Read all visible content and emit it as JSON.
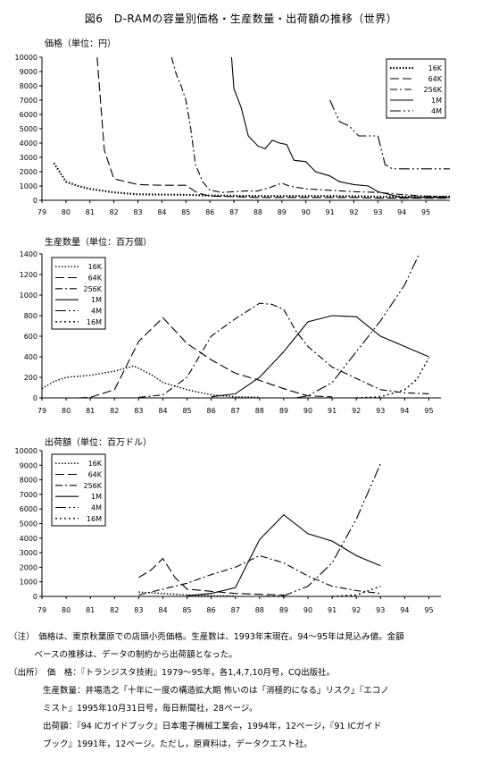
{
  "figure_title": "図6　D-RAMの容量別価格・生産数量・出荷額の推移（世界）",
  "chart_data": [
    {
      "id": "price",
      "type": "line",
      "ylabel": "価格（単位：円）",
      "ylim": [
        0,
        10000
      ],
      "yticks": [
        0,
        1000,
        2000,
        3000,
        4000,
        5000,
        6000,
        7000,
        8000,
        9000,
        10000
      ],
      "xlim": [
        79,
        96
      ],
      "xticks": [
        79,
        80,
        81,
        82,
        83,
        84,
        85,
        86,
        87,
        88,
        89,
        90,
        91,
        92,
        93,
        94,
        95
      ],
      "legend_position": "top-right",
      "grid": false,
      "series": [
        {
          "name": "16K",
          "dash": "1.5,2",
          "width": 2.2,
          "points": [
            [
              79.5,
              2600
            ],
            [
              80.0,
              1300
            ],
            [
              80.5,
              1000
            ],
            [
              81.0,
              800
            ],
            [
              82.0,
              550
            ],
            [
              83.0,
              420
            ],
            [
              85.0,
              380
            ],
            [
              86.0,
              330
            ],
            [
              87.0,
              320
            ],
            [
              88.0,
              300
            ],
            [
              89.0,
              300
            ],
            [
              90.0,
              300
            ],
            [
              91.0,
              300
            ],
            [
              92.0,
              280
            ],
            [
              93.0,
              250
            ],
            [
              94.0,
              250
            ],
            [
              95.0,
              250
            ],
            [
              96.0,
              250
            ]
          ]
        },
        {
          "name": "64K",
          "dash": "10,4",
          "width": 1.1,
          "points": [
            [
              81.3,
              10000
            ],
            [
              81.6,
              3500
            ],
            [
              82.0,
              1500
            ],
            [
              82.5,
              1300
            ],
            [
              83.0,
              1100
            ],
            [
              84.0,
              1050
            ],
            [
              85.0,
              1050
            ],
            [
              85.5,
              500
            ],
            [
              86.0,
              300
            ],
            [
              87.0,
              250
            ],
            [
              88.0,
              200
            ],
            [
              89.0,
              200
            ],
            [
              90.0,
              200
            ],
            [
              91.0,
              200
            ],
            [
              92.0,
              200
            ],
            [
              93.0,
              150
            ],
            [
              94.0,
              150
            ],
            [
              95.0,
              150
            ],
            [
              96.0,
              150
            ]
          ]
        },
        {
          "name": "256K",
          "dash": "8,3,2,3",
          "width": 1.1,
          "points": [
            [
              84.4,
              10000
            ],
            [
              84.6,
              8800
            ],
            [
              84.8,
              8000
            ],
            [
              85.0,
              7000
            ],
            [
              85.2,
              5000
            ],
            [
              85.4,
              2500
            ],
            [
              85.7,
              1300
            ],
            [
              86.0,
              700
            ],
            [
              86.5,
              550
            ],
            [
              87.0,
              600
            ],
            [
              87.5,
              650
            ],
            [
              88.0,
              650
            ],
            [
              88.5,
              900
            ],
            [
              89.0,
              1200
            ],
            [
              89.3,
              1000
            ],
            [
              90.0,
              800
            ],
            [
              91.0,
              700
            ],
            [
              92.0,
              600
            ],
            [
              93.0,
              550
            ],
            [
              94.0,
              400
            ],
            [
              95.0,
              300
            ],
            [
              96.0,
              250
            ]
          ]
        },
        {
          "name": "1M",
          "dash": "",
          "width": 1.1,
          "points": [
            [
              86.9,
              10000
            ],
            [
              87.0,
              7800
            ],
            [
              87.3,
              6500
            ],
            [
              87.6,
              4500
            ],
            [
              88.0,
              3800
            ],
            [
              88.3,
              3600
            ],
            [
              88.6,
              4200
            ],
            [
              88.9,
              4000
            ],
            [
              89.2,
              3900
            ],
            [
              89.5,
              2800
            ],
            [
              90.0,
              2700
            ],
            [
              90.4,
              2000
            ],
            [
              91.0,
              1700
            ],
            [
              91.4,
              1300
            ],
            [
              92.0,
              1100
            ],
            [
              92.6,
              1000
            ],
            [
              93.0,
              600
            ],
            [
              93.5,
              400
            ],
            [
              94.0,
              200
            ],
            [
              94.5,
              200
            ],
            [
              95.0,
              200
            ],
            [
              96.0,
              200
            ]
          ]
        },
        {
          "name": "4M",
          "dash": "12,3,2,3,2,3",
          "width": 1.1,
          "points": [
            [
              91.0,
              7000
            ],
            [
              91.4,
              5500
            ],
            [
              91.8,
              5200
            ],
            [
              92.2,
              4500
            ],
            [
              93.0,
              4500
            ],
            [
              93.3,
              2500
            ],
            [
              93.6,
              2200
            ],
            [
              94.0,
              2200
            ],
            [
              95.0,
              2200
            ],
            [
              96.0,
              2200
            ]
          ]
        }
      ]
    },
    {
      "id": "production",
      "type": "line",
      "ylabel": "生産数量（単位：百万個）",
      "ylim": [
        0,
        1400
      ],
      "yticks": [
        0,
        200,
        400,
        600,
        800,
        1000,
        1200,
        1400
      ],
      "xlim": [
        79,
        95.5
      ],
      "xticks": [
        79,
        80,
        81,
        82,
        83,
        84,
        85,
        86,
        87,
        88,
        89,
        90,
        91,
        92,
        93,
        94,
        95
      ],
      "legend_position": "top-left",
      "grid": false,
      "series": [
        {
          "name": "16K",
          "dash": "1.5,2",
          "width": 1.4,
          "points": [
            [
              79.0,
              90
            ],
            [
              79.5,
              160
            ],
            [
              80.0,
              200
            ],
            [
              81.0,
              220
            ],
            [
              82.0,
              260
            ],
            [
              82.8,
              310
            ],
            [
              83.5,
              230
            ],
            [
              84.0,
              150
            ],
            [
              85.0,
              80
            ],
            [
              86.0,
              30
            ],
            [
              87.0,
              10
            ],
            [
              88.0,
              5
            ]
          ]
        },
        {
          "name": "64K",
          "dash": "10,4",
          "width": 1.1,
          "points": [
            [
              80.5,
              0
            ],
            [
              81.0,
              5
            ],
            [
              82.0,
              80
            ],
            [
              83.0,
              550
            ],
            [
              84.0,
              780
            ],
            [
              85.0,
              530
            ],
            [
              86.0,
              370
            ],
            [
              87.0,
              240
            ],
            [
              88.0,
              170
            ],
            [
              89.0,
              90
            ],
            [
              90.0,
              20
            ],
            [
              91.0,
              10
            ]
          ]
        },
        {
          "name": "256K",
          "dash": "8,3,2,3",
          "width": 1.1,
          "points": [
            [
              83.0,
              5
            ],
            [
              84.0,
              30
            ],
            [
              85.0,
              200
            ],
            [
              86.0,
              600
            ],
            [
              87.0,
              770
            ],
            [
              88.0,
              920
            ],
            [
              88.5,
              910
            ],
            [
              89.0,
              860
            ],
            [
              89.5,
              650
            ],
            [
              90.0,
              500
            ],
            [
              91.0,
              300
            ],
            [
              92.0,
              190
            ],
            [
              93.0,
              80
            ],
            [
              94.0,
              50
            ],
            [
              95.0,
              40
            ]
          ]
        },
        {
          "name": "1M",
          "dash": "",
          "width": 1.1,
          "points": [
            [
              86.0,
              10
            ],
            [
              87.0,
              40
            ],
            [
              88.0,
              200
            ],
            [
              89.0,
              450
            ],
            [
              90.0,
              740
            ],
            [
              91.0,
              800
            ],
            [
              92.0,
              790
            ],
            [
              93.0,
              600
            ],
            [
              94.0,
              500
            ],
            [
              95.0,
              400
            ]
          ]
        },
        {
          "name": "4M",
          "dash": "12,3,2,3,2,3",
          "width": 1.1,
          "points": [
            [
              89.5,
              0
            ],
            [
              90.0,
              20
            ],
            [
              91.0,
              150
            ],
            [
              92.0,
              450
            ],
            [
              93.0,
              750
            ],
            [
              94.0,
              1100
            ],
            [
              94.6,
              1400
            ]
          ]
        },
        {
          "name": "16M",
          "dash": "2,3",
          "width": 1.4,
          "points": [
            [
              92.0,
              0
            ],
            [
              93.0,
              10
            ],
            [
              94.0,
              80
            ],
            [
              94.5,
              180
            ],
            [
              95.0,
              390
            ]
          ]
        }
      ]
    },
    {
      "id": "shipments",
      "type": "line",
      "ylabel": "出荷額（単位：百万ドル）",
      "ylim": [
        0,
        10000
      ],
      "yticks": [
        0,
        1000,
        2000,
        3000,
        4000,
        5000,
        6000,
        7000,
        8000,
        9000,
        10000
      ],
      "xlim": [
        79,
        95.5
      ],
      "xticks": [
        79,
        80,
        81,
        82,
        83,
        84,
        85,
        86,
        87,
        88,
        89,
        90,
        91,
        92,
        93,
        94,
        95
      ],
      "legend_position": "top-left",
      "grid": false,
      "series": [
        {
          "name": "16K",
          "dash": "1.5,2",
          "width": 1.4,
          "points": [
            [
              83.0,
              300
            ],
            [
              84.0,
              200
            ],
            [
              85.0,
              100
            ],
            [
              86.0,
              50
            ],
            [
              87.0,
              30
            ]
          ]
        },
        {
          "name": "64K",
          "dash": "10,4",
          "width": 1.1,
          "points": [
            [
              83.0,
              1300
            ],
            [
              83.5,
              1800
            ],
            [
              84.0,
              2600
            ],
            [
              84.5,
              1300
            ],
            [
              85.0,
              500
            ],
            [
              86.0,
              350
            ],
            [
              87.0,
              200
            ],
            [
              88.0,
              150
            ],
            [
              89.0,
              100
            ]
          ]
        },
        {
          "name": "256K",
          "dash": "8,3,2,3",
          "width": 1.1,
          "points": [
            [
              83.0,
              100
            ],
            [
              84.0,
              500
            ],
            [
              85.0,
              900
            ],
            [
              86.0,
              1500
            ],
            [
              87.0,
              2000
            ],
            [
              88.0,
              2800
            ],
            [
              89.0,
              2300
            ],
            [
              90.0,
              1400
            ],
            [
              91.0,
              700
            ],
            [
              92.0,
              400
            ],
            [
              93.0,
              200
            ]
          ]
        },
        {
          "name": "1M",
          "dash": "",
          "width": 1.1,
          "points": [
            [
              85.0,
              50
            ],
            [
              86.0,
              200
            ],
            [
              87.0,
              600
            ],
            [
              88.0,
              3900
            ],
            [
              89.0,
              5600
            ],
            [
              90.0,
              4300
            ],
            [
              91.0,
              3800
            ],
            [
              92.0,
              2800
            ],
            [
              93.0,
              2100
            ]
          ]
        },
        {
          "name": "4M",
          "dash": "12,3,2,3,2,3",
          "width": 1.1,
          "points": [
            [
              88.0,
              0
            ],
            [
              89.0,
              50
            ],
            [
              90.0,
              700
            ],
            [
              91.0,
              2300
            ],
            [
              92.0,
              5300
            ],
            [
              93.0,
              9100
            ]
          ]
        },
        {
          "name": "16M",
          "dash": "2,3",
          "width": 1.4,
          "points": [
            [
              91.0,
              0
            ],
            [
              92.0,
              100
            ],
            [
              93.0,
              700
            ]
          ]
        }
      ]
    }
  ],
  "notes": [
    "（注）　価格は、東京秋葉原での店頭小売価格。生産数は、1993年末現在。94～95年は見込み値。金額",
    "　　　ベースの推移は、データの制約から出荷額となった。",
    "（出所）　価　格：『トランジスタ技術』1979～95年，各1,4,7,10月号，CQ出版社。",
    "　　　　生産数量：井場浩之「十年に一度の構造拡大期 怖いのは「消極的になる」リスク」『エコノ",
    "　　　　ミスト』1995年10月31日号，毎日新聞社，28ページ。",
    "　　　　出荷額：『94 ICガイドブック』日本電子機械工業会，1994年，12ページ，『91 ICガイド",
    "　　　　ブック』1991年，12ページ。ただし，原資料は，データクエスト社。"
  ]
}
